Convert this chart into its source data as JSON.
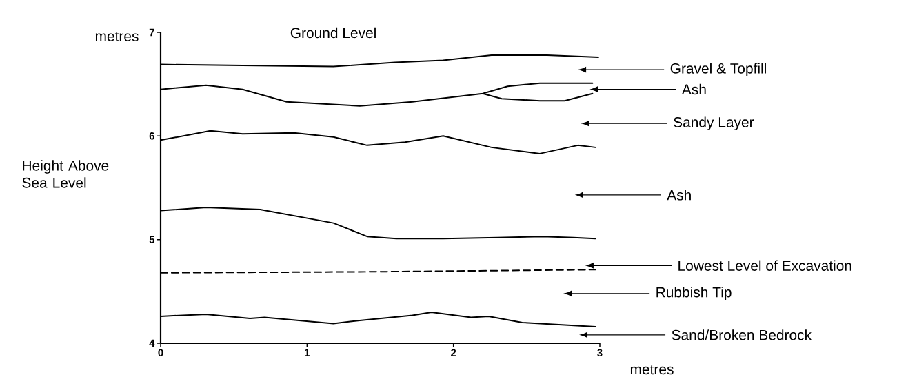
{
  "chart_data": {
    "type": "line",
    "xlabel": "metres",
    "ylabel": "Height Above Sea Level",
    "xlim": [
      0,
      3
    ],
    "ylim": [
      4,
      7
    ],
    "xticks": [
      0,
      1,
      2,
      3
    ],
    "yticks": [
      4,
      5,
      6,
      7
    ],
    "series": [
      {
        "name": "Ground Level",
        "color": "#000000",
        "x": [
          0,
          0.56,
          1.18,
          1.6,
          1.93,
          2.26,
          2.64,
          2.99
        ],
        "values": [
          6.69,
          6.68,
          6.67,
          6.71,
          6.73,
          6.78,
          6.78,
          6.76
        ]
      },
      {
        "color": "#000000",
        "x": [
          0,
          0.31,
          0.56,
          0.86,
          1.36,
          1.72,
          2.2,
          2.37,
          2.59,
          2.95
        ],
        "values": [
          6.45,
          6.49,
          6.45,
          6.33,
          6.29,
          6.33,
          6.41,
          6.48,
          6.51,
          6.51
        ]
      },
      {
        "color": "#000000",
        "x": [
          2.2,
          2.33,
          2.59,
          2.76,
          2.95
        ],
        "values": [
          6.41,
          6.36,
          6.34,
          6.34,
          6.41
        ]
      },
      {
        "color": "#000000",
        "x": [
          0,
          0.34,
          0.56,
          0.91,
          1.18,
          1.41,
          1.67,
          1.93,
          2.26,
          2.59,
          2.85,
          2.97
        ],
        "values": [
          5.96,
          6.05,
          6.02,
          6.03,
          5.99,
          5.91,
          5.94,
          6.0,
          5.89,
          5.83,
          5.91,
          5.89
        ]
      },
      {
        "color": "#000000",
        "x": [
          0,
          0.31,
          0.68,
          1.18,
          1.41,
          1.61,
          1.93,
          2.3,
          2.61,
          2.82,
          2.97
        ],
        "values": [
          5.28,
          5.31,
          5.29,
          5.16,
          5.03,
          5.01,
          5.01,
          5.02,
          5.03,
          5.02,
          5.01
        ]
      },
      {
        "color": "#000000",
        "line_style": "dashed",
        "x": [
          0,
          1.5,
          2.97
        ],
        "values": [
          4.68,
          4.69,
          4.71
        ]
      },
      {
        "color": "#000000",
        "x": [
          0,
          0.31,
          0.61,
          0.71,
          1.18,
          1.36,
          1.72,
          1.85,
          2.12,
          2.24,
          2.47,
          2.97
        ],
        "values": [
          4.26,
          4.28,
          4.24,
          4.25,
          4.19,
          4.22,
          4.27,
          4.3,
          4.25,
          4.26,
          4.2,
          4.16
        ]
      }
    ],
    "annotations": [
      "metres",
      "Gravel & Topfill",
      "Ash",
      "Sandy Layer",
      "Ash",
      "Lowest Level of Excavation",
      "Rubbish Tip",
      "Sand/Broken Bedrock"
    ]
  }
}
